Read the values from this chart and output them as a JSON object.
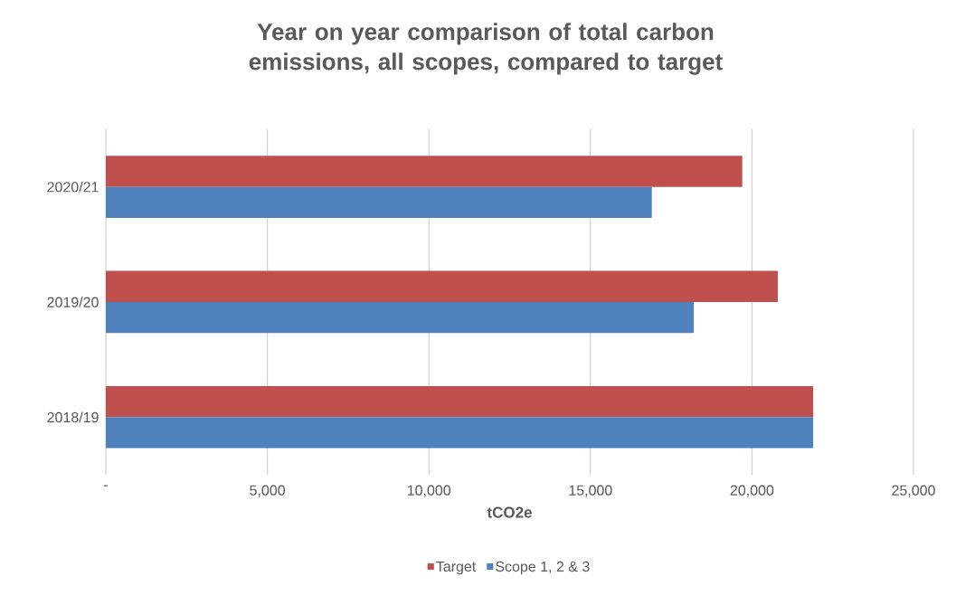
{
  "chart_data": {
    "type": "bar",
    "orientation": "horizontal",
    "title": "Year on year comparison of total carbon emissions, all scopes, compared to target",
    "xlabel": "tCO2e",
    "categories": [
      "2020/21",
      "2019/20",
      "2018/19"
    ],
    "series": [
      {
        "name": "Target",
        "color": "#c0504d",
        "values": [
          19700,
          20800,
          21900
        ]
      },
      {
        "name": "Scope 1, 2 & 3",
        "color": "#4f81bd",
        "values": [
          16900,
          18200,
          21900
        ]
      }
    ],
    "xlim": [
      0,
      25000
    ],
    "xticks": [
      {
        "value": 0,
        "label": "-"
      },
      {
        "value": 5000,
        "label": "5,000"
      },
      {
        "value": 10000,
        "label": "10,000"
      },
      {
        "value": 15000,
        "label": "15,000"
      },
      {
        "value": 20000,
        "label": "20,000"
      },
      {
        "value": 25000,
        "label": "25,000"
      }
    ],
    "grid": "x",
    "legend": "bottom"
  }
}
